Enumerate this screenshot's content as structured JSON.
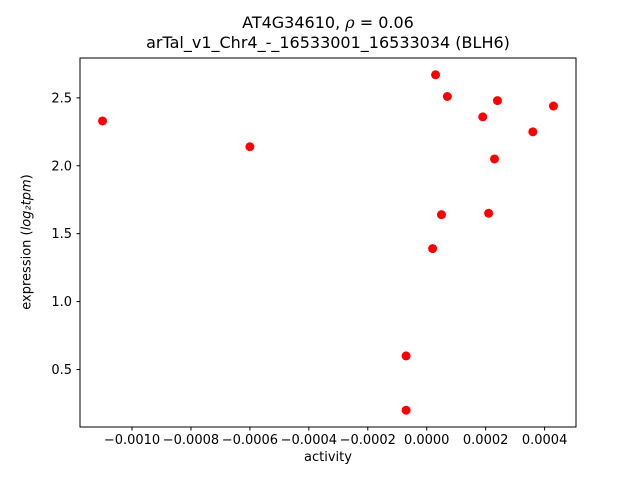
{
  "header": {
    "line1_prefix": "AT4G34610, ",
    "line1_rho": "ρ",
    "line1_suffix": " = 0.06",
    "line2": "arTal_v1_Chr4_-_16533001_16533034 (BLH6)"
  },
  "chart_data": {
    "type": "scatter",
    "title": "AT4G34610, ρ = 0.06 — arTal_v1_Chr4_-_16533001_16533034 (BLH6)",
    "xlabel": "activity",
    "ylabel_prefix": "expression (",
    "ylabel_math": "log₂tpm",
    "ylabel_suffix": ")",
    "marker_color": "#ff0000",
    "grid": false,
    "legend": "none",
    "xlim": [
      -0.0011765,
      0.0005065
    ],
    "ylim": [
      0.0765,
      2.7935
    ],
    "xticks": {
      "values": [
        -0.001,
        -0.0008,
        -0.0006,
        -0.0004,
        -0.0002,
        0.0,
        0.0002,
        0.0004
      ],
      "labels": [
        "−0.0010",
        "−0.0008",
        "−0.0006",
        "−0.0004",
        "−0.0002",
        "0.0000",
        "0.0002",
        "0.0004"
      ]
    },
    "yticks": {
      "values": [
        0.5,
        1.0,
        1.5,
        2.0,
        2.5
      ],
      "labels": [
        "0.5",
        "1.0",
        "1.5",
        "2.0",
        "2.5"
      ]
    },
    "points": [
      {
        "x": -0.0011,
        "y": 2.33
      },
      {
        "x": -0.0006,
        "y": 2.14
      },
      {
        "x": 3e-05,
        "y": 2.67
      },
      {
        "x": 7e-05,
        "y": 2.51
      },
      {
        "x": 0.00019,
        "y": 2.36
      },
      {
        "x": 0.00024,
        "y": 2.48
      },
      {
        "x": 0.00023,
        "y": 2.05
      },
      {
        "x": 0.00036,
        "y": 2.25
      },
      {
        "x": 0.00043,
        "y": 2.44
      },
      {
        "x": 5e-05,
        "y": 1.64
      },
      {
        "x": 0.00021,
        "y": 1.65
      },
      {
        "x": 2e-05,
        "y": 1.39
      },
      {
        "x": -7e-05,
        "y": 0.6
      },
      {
        "x": -7e-05,
        "y": 0.2
      }
    ]
  }
}
